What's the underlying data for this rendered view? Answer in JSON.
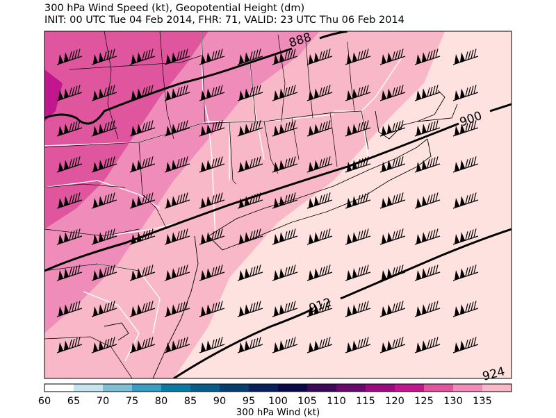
{
  "title": {
    "line1": "300 hPa Wind Speed (kt), Geopotential Height (dm)",
    "line2": "INIT: 00 UTC Tue 04 Feb 2014, FHR: 71, VALID: 23 UTC Thu 06 Feb 2014"
  },
  "contour_labels": [
    "888",
    "900",
    "912",
    "924"
  ],
  "colorbar": {
    "label": "300 hPa Wind (kt)",
    "ticks": [
      "60",
      "65",
      "70",
      "75",
      "80",
      "85",
      "90",
      "95",
      "100",
      "105",
      "110",
      "115",
      "120",
      "125",
      "130",
      "135"
    ],
    "colors": [
      "#ffffff",
      "#c5e4ef",
      "#7fbfd6",
      "#3a9ec0",
      "#0c7aa5",
      "#075c8a",
      "#063e72",
      "#08205c",
      "#0a0a4a",
      "#3d0a5a",
      "#6a0a6e",
      "#9a0a80",
      "#c0168e",
      "#e0569e",
      "#f08cba",
      "#f9b8c8",
      "#fde2e0"
    ]
  },
  "colors": {
    "wind_115": "#e0569e",
    "wind_120": "#f08cba",
    "wind_125": "#f9b8c8",
    "wind_130": "#fde2e0",
    "wind_110": "#c0168e",
    "contour": "#000000"
  },
  "barb_icon": "wind-barb-icon"
}
